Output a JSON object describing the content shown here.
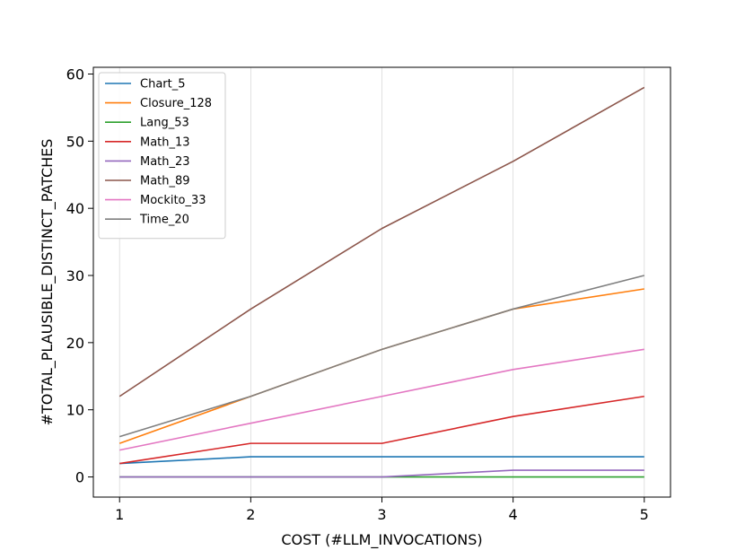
{
  "chart_data": {
    "type": "line",
    "xlabel": "COST (#LLM_INVOCATIONS)",
    "ylabel": "#TOTAL_PLAUSIBLE_DISTINCT_PATCHES",
    "x": [
      1,
      2,
      3,
      4,
      5
    ],
    "x_ticks": [
      "1",
      "2",
      "3",
      "4",
      "5"
    ],
    "y_ticks": [
      "0",
      "10",
      "20",
      "30",
      "40",
      "50",
      "60"
    ],
    "xlim": [
      0.8,
      5.2
    ],
    "ylim": [
      -3,
      61
    ],
    "grid": "vertical",
    "legend_position": "top-left",
    "series": [
      {
        "name": "Chart_5",
        "color": "#1f77b4",
        "values": [
          2,
          3,
          3,
          3,
          3
        ]
      },
      {
        "name": "Closure_128",
        "color": "#ff7f0e",
        "values": [
          5,
          12,
          19,
          25,
          28
        ]
      },
      {
        "name": "Lang_53",
        "color": "#2ca02c",
        "values": [
          0,
          0,
          0,
          0,
          0
        ]
      },
      {
        "name": "Math_13",
        "color": "#d62728",
        "values": [
          2,
          5,
          5,
          9,
          12
        ]
      },
      {
        "name": "Math_23",
        "color": "#9467bd",
        "values": [
          0,
          0,
          0,
          1,
          1
        ]
      },
      {
        "name": "Math_89",
        "color": "#8c564b",
        "values": [
          12,
          25,
          37,
          47,
          58
        ]
      },
      {
        "name": "Mockito_33",
        "color": "#e377c2",
        "values": [
          4,
          8,
          12,
          16,
          19
        ]
      },
      {
        "name": "Time_20",
        "color": "#7f7f7f",
        "values": [
          6,
          12,
          19,
          25,
          30
        ]
      }
    ]
  }
}
